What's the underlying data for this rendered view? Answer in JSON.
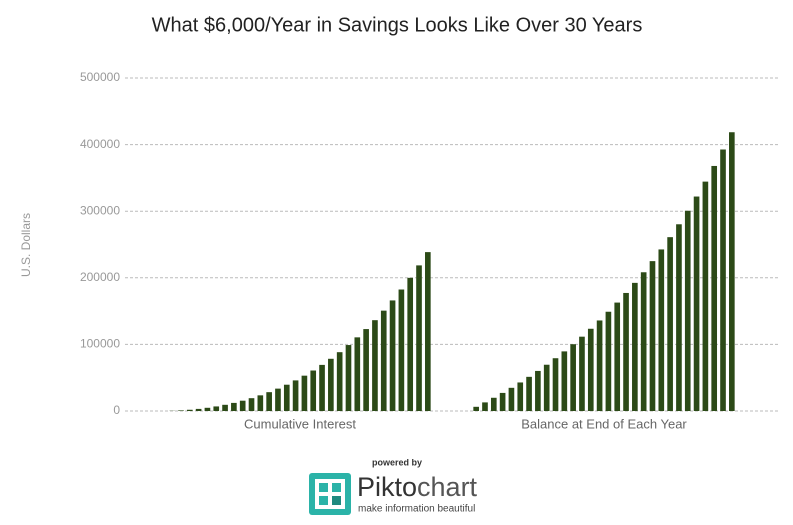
{
  "chart_data": {
    "type": "bar",
    "title": "What $6,000/Year in Savings Looks Like Over 30 Years",
    "y_label": "U.S. Dollars",
    "series": [
      {
        "name": "Cumulative Interest",
        "color": "#2c4a17",
        "values": [
          300,
          915,
          1861,
          3154,
          4812,
          6852,
          9295,
          12159,
          15467,
          19241,
          23503,
          28278,
          33592,
          39471,
          45945,
          53042,
          60794,
          69234,
          78396,
          88316,
          99031,
          110583,
          123012,
          136363,
          150681,
          166015,
          182415,
          199936,
          218633,
          238565
        ]
      },
      {
        "name": "Balance at End of Each Year",
        "color": "#2c4a17",
        "values": [
          6300,
          12915,
          19861,
          27154,
          34812,
          42852,
          51295,
          60159,
          69467,
          79241,
          89503,
          100278,
          111592,
          123471,
          135945,
          149042,
          162794,
          177234,
          192396,
          208316,
          225031,
          242583,
          261012,
          280363,
          300681,
          322015,
          344415,
          367936,
          392633,
          418565
        ]
      }
    ],
    "ylim": [
      0,
      500000
    ],
    "yticks": [
      0,
      100000,
      200000,
      300000,
      400000,
      500000
    ],
    "grid": true
  },
  "branding": {
    "powered": "powered by",
    "name_a": "Pikto",
    "name_b": "chart",
    "tagline": "make information beautiful"
  }
}
